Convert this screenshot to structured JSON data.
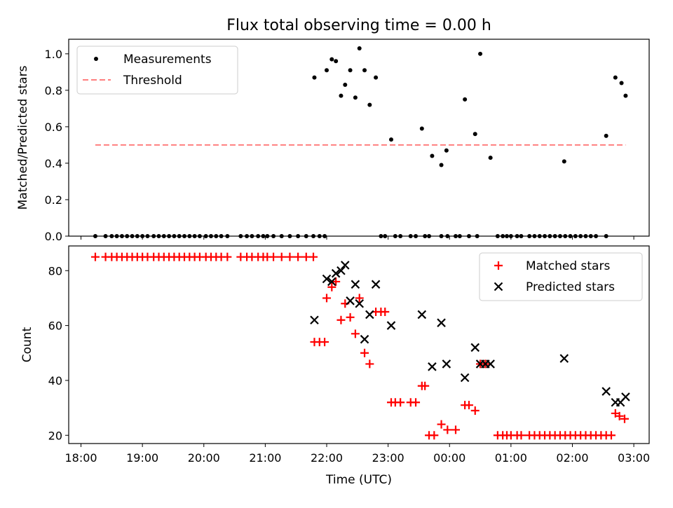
{
  "chart_data": [
    {
      "type": "scatter",
      "title": "Flux total observing time = 0.00 h",
      "xlabel": "",
      "ylabel": "Matched/Predicted stars",
      "xlim": [
        "18:00",
        "03:00"
      ],
      "ylim": [
        0,
        1.08
      ],
      "yticks": [
        "0.0",
        "0.2",
        "0.4",
        "0.6",
        "0.8",
        "1.0"
      ],
      "grid": false,
      "legend_position": "upper left",
      "series": [
        {
          "name": "Measurements",
          "color": "#000000",
          "marker": "dot",
          "points": [
            [
              "18:14",
              0
            ],
            [
              "18:24",
              0
            ],
            [
              "18:30",
              0
            ],
            [
              "18:35",
              0
            ],
            [
              "18:40",
              0
            ],
            [
              "18:45",
              0
            ],
            [
              "18:50",
              0
            ],
            [
              "18:55",
              0
            ],
            [
              "19:00",
              0
            ],
            [
              "19:05",
              0
            ],
            [
              "19:11",
              0
            ],
            [
              "19:16",
              0
            ],
            [
              "19:21",
              0
            ],
            [
              "19:26",
              0
            ],
            [
              "19:31",
              0
            ],
            [
              "19:36",
              0
            ],
            [
              "19:41",
              0
            ],
            [
              "19:46",
              0
            ],
            [
              "19:51",
              0
            ],
            [
              "19:56",
              0
            ],
            [
              "20:02",
              0
            ],
            [
              "20:07",
              0
            ],
            [
              "20:12",
              0
            ],
            [
              "20:17",
              0
            ],
            [
              "20:23",
              0
            ],
            [
              "20:36",
              0
            ],
            [
              "20:42",
              0
            ],
            [
              "20:47",
              0
            ],
            [
              "20:53",
              0
            ],
            [
              "20:58",
              0
            ],
            [
              "21:02",
              0
            ],
            [
              "21:08",
              0
            ],
            [
              "21:16",
              0
            ],
            [
              "21:24",
              0
            ],
            [
              "21:32",
              0
            ],
            [
              "21:40",
              0
            ],
            [
              "21:47",
              0
            ],
            [
              "21:53",
              0
            ],
            [
              "21:58",
              0
            ],
            [
              "21:48",
              0.87
            ],
            [
              "22:00",
              0.91
            ],
            [
              "22:05",
              0.97
            ],
            [
              "22:09",
              0.96
            ],
            [
              "22:14",
              0.77
            ],
            [
              "22:18",
              0.83
            ],
            [
              "22:23",
              0.91
            ],
            [
              "22:28",
              0.76
            ],
            [
              "22:32",
              1.03
            ],
            [
              "22:37",
              0.91
            ],
            [
              "22:42",
              0.72
            ],
            [
              "22:48",
              0.87
            ],
            [
              "22:53",
              0
            ],
            [
              "22:57",
              0
            ],
            [
              "23:07",
              0
            ],
            [
              "23:12",
              0
            ],
            [
              "23:22",
              0
            ],
            [
              "23:27",
              0
            ],
            [
              "23:36",
              0
            ],
            [
              "23:40",
              0
            ],
            [
              "23:52",
              0
            ],
            [
              "23:58",
              0
            ],
            [
              "00:06",
              0
            ],
            [
              "00:10",
              0
            ],
            [
              "00:19",
              0
            ],
            [
              "00:27",
              0
            ],
            [
              "00:47",
              0
            ],
            [
              "00:52",
              0
            ],
            [
              "00:56",
              0
            ],
            [
              "01:00",
              0
            ],
            [
              "01:06",
              0
            ],
            [
              "01:10",
              0
            ],
            [
              "01:18",
              0
            ],
            [
              "01:23",
              0
            ],
            [
              "01:28",
              0
            ],
            [
              "01:33",
              0
            ],
            [
              "01:38",
              0
            ],
            [
              "01:43",
              0
            ],
            [
              "01:48",
              0
            ],
            [
              "01:53",
              0
            ],
            [
              "01:58",
              0
            ],
            [
              "02:03",
              0
            ],
            [
              "02:08",
              0
            ],
            [
              "02:13",
              0
            ],
            [
              "02:18",
              0
            ],
            [
              "02:23",
              0
            ],
            [
              "02:33",
              0
            ],
            [
              "23:03",
              0.53
            ],
            [
              "23:33",
              0.59
            ],
            [
              "23:43",
              0.44
            ],
            [
              "23:52",
              0.39
            ],
            [
              "23:57",
              0.47
            ],
            [
              "00:15",
              0.75
            ],
            [
              "00:25",
              0.56
            ],
            [
              "00:30",
              1.0
            ],
            [
              "00:40",
              0.43
            ],
            [
              "01:52",
              0.41
            ],
            [
              "02:33",
              0.55
            ],
            [
              "02:42",
              0.87
            ],
            [
              "02:48",
              0.84
            ],
            [
              "02:52",
              0.77
            ]
          ]
        },
        {
          "name": "Threshold",
          "color": "#ff7f7f",
          "style": "dashed",
          "points": [
            [
              "18:14",
              0.5
            ],
            [
              "02:52",
              0.5
            ]
          ]
        }
      ]
    },
    {
      "type": "scatter",
      "title": "",
      "xlabel": "Time (UTC)",
      "ylabel": "Count",
      "xlim": [
        "18:00",
        "03:00"
      ],
      "ylim": [
        17,
        89
      ],
      "xticks": [
        "18:00",
        "19:00",
        "20:00",
        "21:00",
        "22:00",
        "23:00",
        "00:00",
        "01:00",
        "02:00",
        "03:00"
      ],
      "yticks": [
        "20",
        "40",
        "60",
        "80"
      ],
      "grid": false,
      "legend_position": "upper right",
      "series": [
        {
          "name": "Matched stars",
          "color": "#ff0000",
          "marker": "plus",
          "points": [
            [
              "18:14",
              85
            ],
            [
              "18:24",
              85
            ],
            [
              "18:30",
              85
            ],
            [
              "18:35",
              85
            ],
            [
              "18:40",
              85
            ],
            [
              "18:45",
              85
            ],
            [
              "18:50",
              85
            ],
            [
              "18:55",
              85
            ],
            [
              "19:00",
              85
            ],
            [
              "19:05",
              85
            ],
            [
              "19:11",
              85
            ],
            [
              "19:16",
              85
            ],
            [
              "19:21",
              85
            ],
            [
              "19:26",
              85
            ],
            [
              "19:31",
              85
            ],
            [
              "19:36",
              85
            ],
            [
              "19:41",
              85
            ],
            [
              "19:46",
              85
            ],
            [
              "19:51",
              85
            ],
            [
              "19:56",
              85
            ],
            [
              "20:02",
              85
            ],
            [
              "20:07",
              85
            ],
            [
              "20:12",
              85
            ],
            [
              "20:17",
              85
            ],
            [
              "20:23",
              85
            ],
            [
              "20:36",
              85
            ],
            [
              "20:42",
              85
            ],
            [
              "20:47",
              85
            ],
            [
              "20:53",
              85
            ],
            [
              "20:58",
              85
            ],
            [
              "21:02",
              85
            ],
            [
              "21:08",
              85
            ],
            [
              "21:16",
              85
            ],
            [
              "21:24",
              85
            ],
            [
              "21:32",
              85
            ],
            [
              "21:40",
              85
            ],
            [
              "21:47",
              85
            ],
            [
              "21:48",
              54
            ],
            [
              "21:53",
              54
            ],
            [
              "21:58",
              54
            ],
            [
              "22:00",
              70
            ],
            [
              "22:05",
              74
            ],
            [
              "22:09",
              76
            ],
            [
              "22:14",
              62
            ],
            [
              "22:18",
              68
            ],
            [
              "22:23",
              63
            ],
            [
              "22:28",
              57
            ],
            [
              "22:32",
              70
            ],
            [
              "22:37",
              50
            ],
            [
              "22:42",
              46
            ],
            [
              "22:48",
              65
            ],
            [
              "22:53",
              65
            ],
            [
              "22:57",
              65
            ],
            [
              "23:03",
              32
            ],
            [
              "23:07",
              32
            ],
            [
              "23:12",
              32
            ],
            [
              "23:22",
              32
            ],
            [
              "23:27",
              32
            ],
            [
              "23:33",
              38
            ],
            [
              "23:36",
              38
            ],
            [
              "23:40",
              20
            ],
            [
              "23:45",
              20
            ],
            [
              "23:52",
              24
            ],
            [
              "23:58",
              22
            ],
            [
              "00:06",
              22
            ],
            [
              "00:15",
              31
            ],
            [
              "00:19",
              31
            ],
            [
              "00:25",
              29
            ],
            [
              "00:30",
              46
            ],
            [
              "00:35",
              46
            ],
            [
              "00:47",
              20
            ],
            [
              "00:52",
              20
            ],
            [
              "00:56",
              20
            ],
            [
              "01:00",
              20
            ],
            [
              "01:06",
              20
            ],
            [
              "01:10",
              20
            ],
            [
              "01:18",
              20
            ],
            [
              "01:23",
              20
            ],
            [
              "01:28",
              20
            ],
            [
              "01:33",
              20
            ],
            [
              "01:38",
              20
            ],
            [
              "01:43",
              20
            ],
            [
              "01:48",
              20
            ],
            [
              "01:53",
              20
            ],
            [
              "01:58",
              20
            ],
            [
              "02:03",
              20
            ],
            [
              "02:08",
              20
            ],
            [
              "02:13",
              20
            ],
            [
              "02:18",
              20
            ],
            [
              "02:23",
              20
            ],
            [
              "02:28",
              20
            ],
            [
              "02:33",
              20
            ],
            [
              "02:38",
              20
            ],
            [
              "02:42",
              28
            ],
            [
              "02:46",
              27
            ],
            [
              "02:51",
              26
            ]
          ]
        },
        {
          "name": "Predicted stars",
          "color": "#000000",
          "marker": "x",
          "points": [
            [
              "21:48",
              62
            ],
            [
              "22:00",
              77
            ],
            [
              "22:05",
              76
            ],
            [
              "22:09",
              79
            ],
            [
              "22:14",
              80
            ],
            [
              "22:18",
              82
            ],
            [
              "22:23",
              69
            ],
            [
              "22:28",
              75
            ],
            [
              "22:32",
              68
            ],
            [
              "22:37",
              55
            ],
            [
              "22:42",
              64
            ],
            [
              "22:48",
              75
            ],
            [
              "23:03",
              60
            ],
            [
              "23:33",
              64
            ],
            [
              "23:43",
              45
            ],
            [
              "23:52",
              61
            ],
            [
              "23:57",
              46
            ],
            [
              "00:15",
              41
            ],
            [
              "00:25",
              52
            ],
            [
              "00:30",
              46
            ],
            [
              "00:35",
              46
            ],
            [
              "00:40",
              46
            ],
            [
              "01:52",
              48
            ],
            [
              "02:33",
              36
            ],
            [
              "02:42",
              32
            ],
            [
              "02:47",
              32
            ],
            [
              "02:52",
              34
            ]
          ]
        }
      ]
    }
  ]
}
